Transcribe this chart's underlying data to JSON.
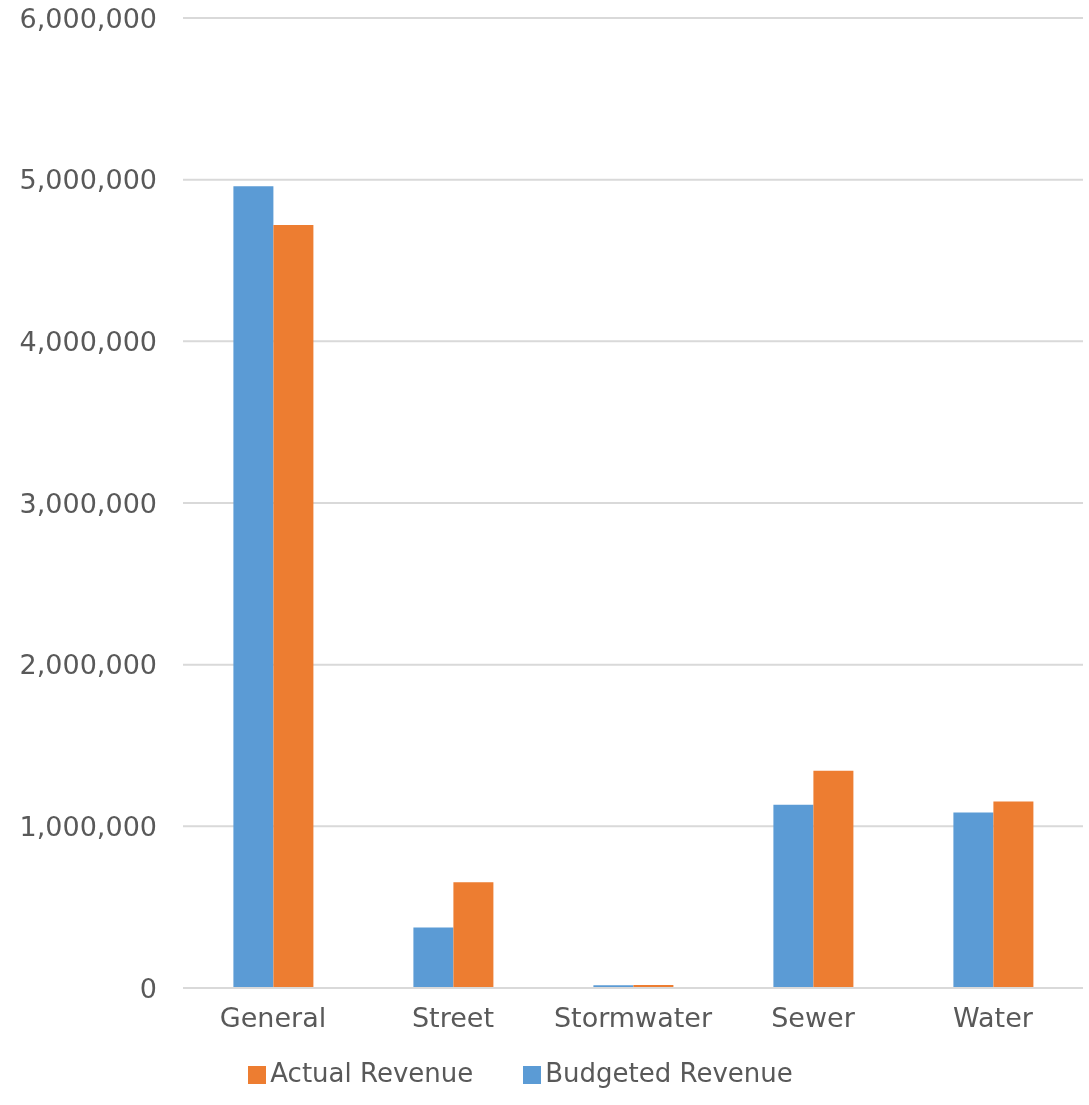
{
  "chart_data": {
    "type": "bar",
    "categories": [
      "General",
      "Street",
      "Stormwater",
      "Sewer",
      "Water"
    ],
    "series": [
      {
        "name": "Budgeted Revenue",
        "color": "#5b9bd5",
        "values": [
          4960000,
          375000,
          17000,
          1133000,
          1085000
        ]
      },
      {
        "name": "Actual Revenue",
        "color": "#ed7d31",
        "values": [
          4720000,
          654000,
          18000,
          1344000,
          1154000
        ]
      }
    ],
    "ylim": [
      0,
      6000000
    ],
    "yticks": [
      0,
      {
        "value": 1000000,
        "label": "1,000,000"
      },
      {
        "value": 2000000,
        "label": "2,000,000"
      },
      {
        "value": 3000000,
        "label": "3,000,000"
      },
      {
        "value": 4000000,
        "label": "4,000,000"
      },
      {
        "value": 5000000,
        "label": "5,000,000"
      },
      {
        "value": 6000000,
        "label": "6,000,000"
      }
    ],
    "grid": "y",
    "legend": "bottom"
  }
}
